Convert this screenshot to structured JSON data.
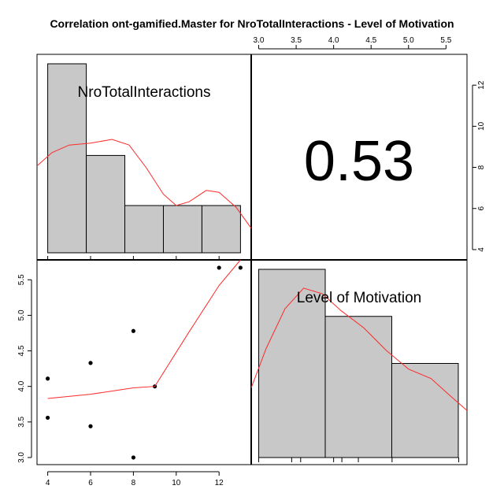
{
  "chart_data": {
    "type": "pairs",
    "title": "Correlation ont-gamified.Master for NroTotalInteractions - Level of Motivation",
    "variables": [
      "NroTotalInteractions",
      "Level of Motivation"
    ],
    "correlation": "0.53",
    "x_axis": {
      "range": [
        3.5,
        13.5
      ],
      "ticks": [
        4,
        6,
        8,
        10,
        12
      ],
      "tick_labels": [
        "4",
        "6",
        "8",
        "10",
        "12"
      ]
    },
    "y_axis": {
      "range": [
        2.9,
        5.78
      ],
      "ticks": [
        3.0,
        3.5,
        4.0,
        4.5,
        5.0,
        5.5
      ],
      "tick_labels": [
        "3.0",
        "3.5",
        "4.0",
        "4.5",
        "5.0",
        "5.5"
      ]
    },
    "top_axis": {
      "ticks": [
        3.0,
        3.5,
        4.0,
        4.5,
        5.0,
        5.5
      ],
      "tick_labels": [
        "3.0",
        "3.5",
        "4.0",
        "4.5",
        "5.0",
        "5.5"
      ]
    },
    "right_axis": {
      "range": [
        3.5,
        13.5
      ],
      "ticks": [
        4,
        6,
        8,
        10,
        12
      ],
      "tick_labels": [
        "4",
        "6",
        "8",
        "10",
        "12"
      ]
    },
    "scatter": {
      "points": [
        {
          "x": 4,
          "y": 4.11
        },
        {
          "x": 4,
          "y": 3.56
        },
        {
          "x": 6,
          "y": 4.33
        },
        {
          "x": 6,
          "y": 3.44
        },
        {
          "x": 8,
          "y": 4.78
        },
        {
          "x": 8,
          "y": 3.0
        },
        {
          "x": 9,
          "y": 4.0
        },
        {
          "x": 12,
          "y": 5.67
        },
        {
          "x": 13,
          "y": 5.67
        }
      ],
      "smooth": [
        [
          4,
          3.83
        ],
        [
          6,
          3.89
        ],
        [
          8,
          3.98
        ],
        [
          9,
          4.0
        ],
        [
          10.5,
          4.72
        ],
        [
          12,
          5.42
        ],
        [
          13,
          5.78
        ]
      ]
    },
    "hist_x": {
      "bins": [
        [
          4.0,
          5.8,
          1.0
        ],
        [
          5.8,
          7.6,
          0.515
        ],
        [
          7.6,
          9.4,
          0.25
        ],
        [
          9.4,
          11.2,
          0.25
        ],
        [
          11.2,
          13.0,
          0.25
        ]
      ],
      "density": [
        [
          3.5,
          0.46
        ],
        [
          4.2,
          0.53
        ],
        [
          5.0,
          0.57
        ],
        [
          6.0,
          0.58
        ],
        [
          7.0,
          0.6
        ],
        [
          7.8,
          0.57
        ],
        [
          8.6,
          0.45
        ],
        [
          9.4,
          0.31
        ],
        [
          10.0,
          0.25
        ],
        [
          10.6,
          0.27
        ],
        [
          11.4,
          0.33
        ],
        [
          12.0,
          0.32
        ],
        [
          12.8,
          0.24
        ],
        [
          13.5,
          0.13
        ]
      ],
      "axis_ticks": [
        4,
        6,
        8,
        10,
        12
      ]
    },
    "hist_y": {
      "bins": [
        [
          3.0,
          3.888,
          1.0
        ],
        [
          3.888,
          4.776,
          0.75
        ],
        [
          4.776,
          5.664,
          0.5
        ]
      ],
      "density": [
        [
          2.9,
          0.37
        ],
        [
          3.1,
          0.58
        ],
        [
          3.35,
          0.79
        ],
        [
          3.6,
          0.9
        ],
        [
          3.85,
          0.87
        ],
        [
          4.1,
          0.78
        ],
        [
          4.4,
          0.69
        ],
        [
          4.7,
          0.57
        ],
        [
          5.0,
          0.47
        ],
        [
          5.3,
          0.42
        ],
        [
          5.55,
          0.33
        ],
        [
          5.78,
          0.25
        ]
      ],
      "rug": [
        3.0,
        3.44,
        3.56,
        4.0,
        4.11,
        4.33,
        4.78,
        5.67
      ]
    }
  }
}
